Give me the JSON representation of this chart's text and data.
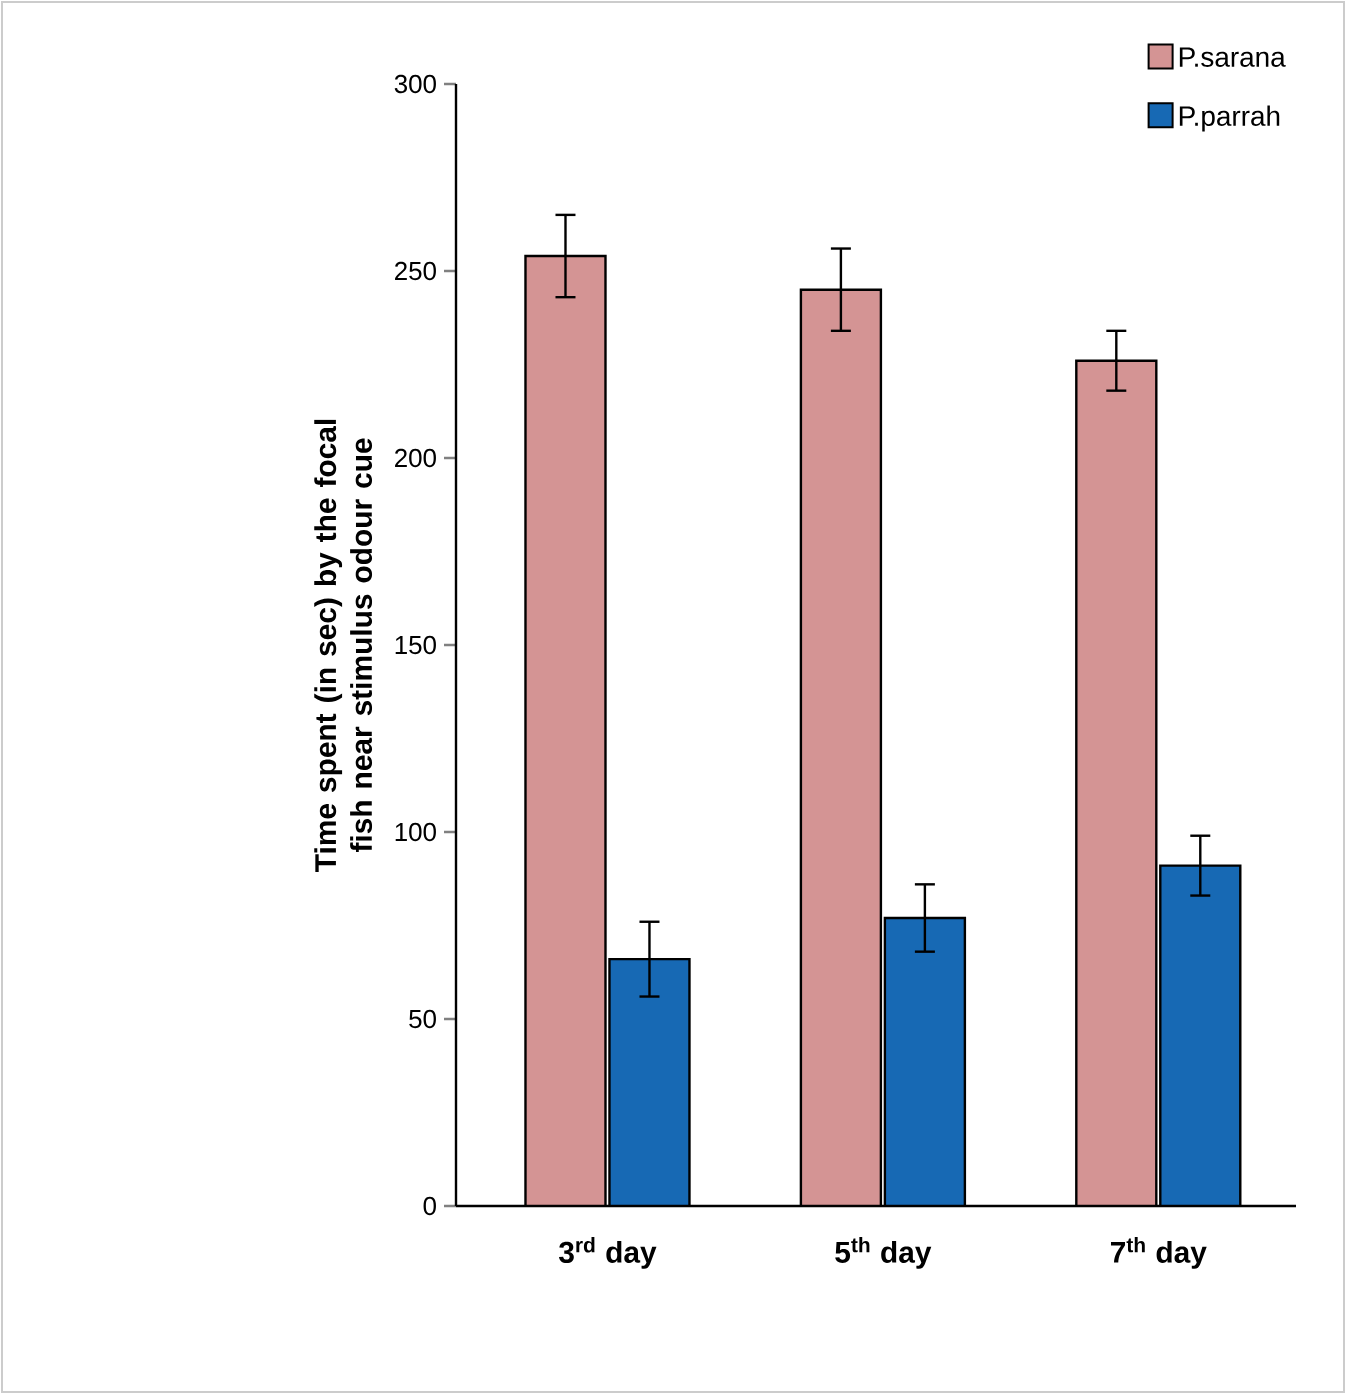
{
  "chart_data": {
    "type": "bar",
    "ylabel": "Time spent (in sec) by the focal fish near stimulus odour cue",
    "categories": [
      "3$^{rd}$ day",
      "5$^{th}$ day",
      "7$^{th}$ day"
    ],
    "series": [
      {
        "name": "P.sarana",
        "color": "#d49494",
        "values": [
          254,
          245,
          226
        ],
        "errors": [
          11,
          11,
          8
        ]
      },
      {
        "name": "P.parrah",
        "color": "#1769b4",
        "values": [
          66,
          77,
          91
        ],
        "errors": [
          10,
          9,
          8
        ]
      }
    ],
    "ylim": [
      0,
      300
    ],
    "yticks": [
      0,
      50,
      100,
      150,
      200,
      250,
      300
    ],
    "grid": false,
    "legend": "top right"
  }
}
